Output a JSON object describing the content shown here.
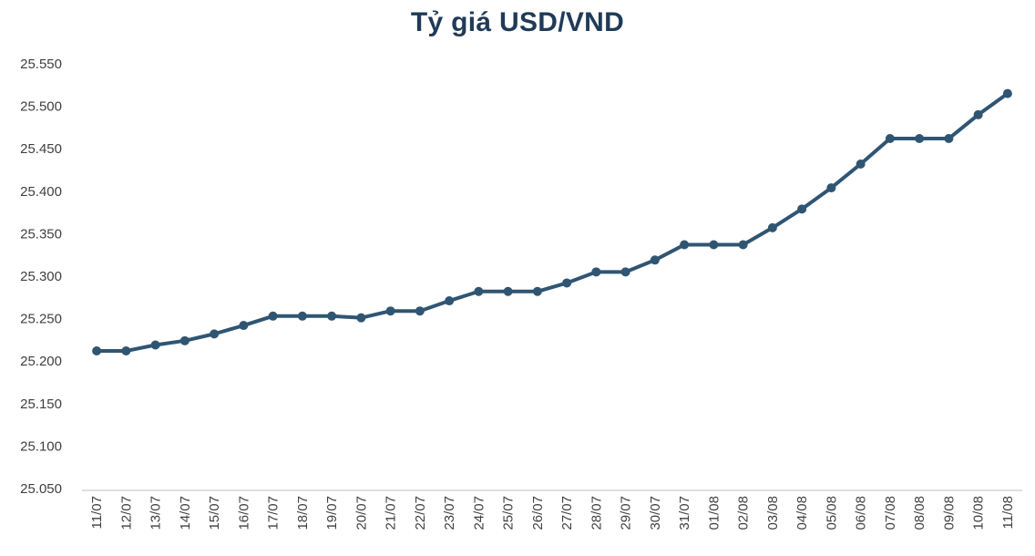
{
  "chart_data": {
    "type": "line",
    "title": "Tỷ giá USD/VND",
    "xlabel": "",
    "ylabel": "",
    "ylim": [
      25050,
      25550
    ],
    "ytick_values": [
      25050,
      25100,
      25150,
      25200,
      25250,
      25300,
      25350,
      25400,
      25450,
      25500,
      25550
    ],
    "ytick_labels": [
      "25.050",
      "25.100",
      "25.150",
      "25.200",
      "25.250",
      "25.300",
      "25.350",
      "25.400",
      "25.450",
      "25.500",
      "25.550"
    ],
    "grid": false,
    "legend": "none",
    "categories": [
      "11/07",
      "12/07",
      "13/07",
      "14/07",
      "15/07",
      "16/07",
      "17/07",
      "18/07",
      "19/07",
      "20/07",
      "21/07",
      "22/07",
      "23/07",
      "24/07",
      "25/07",
      "26/07",
      "27/07",
      "28/07",
      "29/07",
      "30/07",
      "31/07",
      "01/08",
      "02/08",
      "03/08",
      "04/08",
      "05/08",
      "06/08",
      "07/08",
      "08/08",
      "09/08",
      "10/08",
      "11/08"
    ],
    "series": [
      {
        "values": [
          25212,
          25212,
          25219,
          25224,
          25232,
          25242,
          25253,
          25253,
          25253,
          25251,
          25259,
          25259,
          25271,
          25282,
          25282,
          25282,
          25292,
          25305,
          25305,
          25319,
          25337,
          25337,
          25337,
          25357,
          25379,
          25404,
          25432,
          25462,
          25462,
          25462,
          25490,
          25515
        ]
      }
    ],
    "colors": {
      "line": "#2f5573",
      "title": "#1f3b57",
      "axis": "#bfbfbf",
      "tick_text": "#404040"
    }
  }
}
